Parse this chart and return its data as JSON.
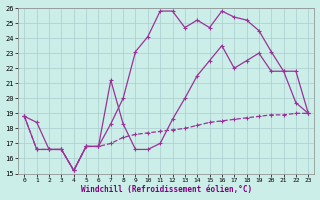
{
  "xlabel": "Windchill (Refroidissement éolien,°C)",
  "xlim": [
    -0.5,
    23.5
  ],
  "ylim": [
    15,
    26
  ],
  "xticks": [
    0,
    1,
    2,
    3,
    4,
    5,
    6,
    7,
    8,
    9,
    10,
    11,
    12,
    13,
    14,
    15,
    16,
    17,
    18,
    19,
    20,
    21,
    22,
    23
  ],
  "yticks": [
    15,
    16,
    17,
    18,
    19,
    20,
    21,
    22,
    23,
    24,
    25,
    26
  ],
  "bg_color": "#cceee8",
  "grid_color": "#aacccc",
  "line_color": "#993399",
  "line1_x": [
    0,
    1,
    2,
    3,
    4,
    5,
    6,
    7,
    8,
    9,
    10,
    11,
    12,
    13,
    14,
    15,
    16,
    17,
    18,
    19,
    20,
    21,
    22,
    23
  ],
  "line1_y": [
    18.8,
    18.4,
    16.6,
    16.6,
    15.2,
    16.8,
    16.8,
    18.3,
    20.0,
    23.1,
    24.1,
    25.8,
    25.8,
    24.7,
    25.2,
    24.7,
    25.8,
    25.4,
    25.2,
    24.5,
    23.1,
    21.8,
    19.7,
    19.0
  ],
  "line2_x": [
    0,
    1,
    2,
    3,
    4,
    5,
    6,
    7,
    8,
    9,
    10,
    11,
    12,
    13,
    14,
    15,
    16,
    17,
    18,
    19,
    20,
    21,
    22,
    23
  ],
  "line2_y": [
    18.8,
    16.6,
    16.6,
    16.6,
    15.2,
    16.8,
    16.8,
    21.2,
    18.3,
    16.6,
    16.6,
    17.0,
    18.6,
    20.0,
    21.5,
    22.5,
    23.5,
    22.0,
    22.5,
    23.0,
    21.8,
    21.8,
    21.8,
    19.0
  ],
  "line2_style": "-",
  "line3_x": [
    0,
    1,
    2,
    3,
    4,
    5,
    6,
    7,
    8,
    9,
    10,
    11,
    12,
    13,
    14,
    15,
    16,
    17,
    18,
    19,
    20,
    21,
    22,
    23
  ],
  "line3_y": [
    18.8,
    16.6,
    16.6,
    16.6,
    15.2,
    16.8,
    16.8,
    17.0,
    17.4,
    17.6,
    17.7,
    17.8,
    17.9,
    18.0,
    18.2,
    18.4,
    18.5,
    18.6,
    18.7,
    18.8,
    18.9,
    18.9,
    19.0,
    19.0
  ],
  "line3_style": "--"
}
